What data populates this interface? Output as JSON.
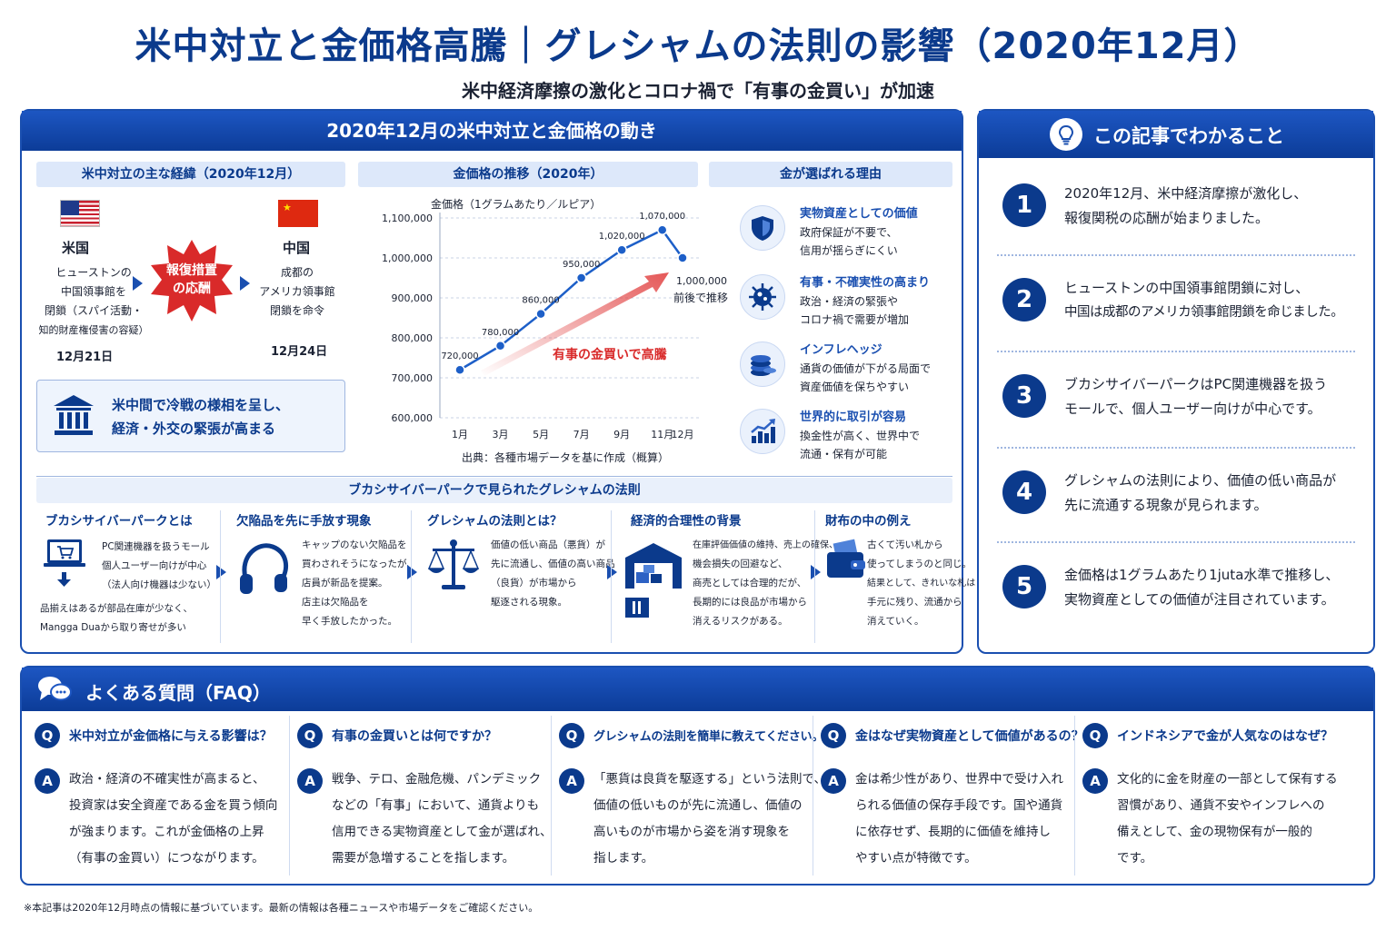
{
  "header": {
    "title": "米中対立と金価格高騰｜グレシャムの法則の影響（2020年12月）",
    "subtitle": "米中経済摩擦の激化とコロナ禍で「有事の金買い」が加速"
  },
  "main_panel": {
    "title": "2020年12月の米中対立と金価格の動き",
    "timeline": {
      "heading": "米中対立の主な経緯（2020年12月）",
      "us": {
        "country": "米国",
        "lines": [
          "ヒューストンの",
          "中国領事館を",
          "閉鎖（スパイ活動・",
          "知的財産権侵害の容疑）"
        ],
        "date": "12月21日"
      },
      "badge": [
        "報復措置",
        "の応酬"
      ],
      "cn": {
        "country": "中国",
        "lines": [
          "成都の",
          "アメリカ領事館",
          "閉鎖を命令"
        ],
        "date": "12月24日"
      },
      "callout": [
        "米中間で冷戦の様相を呈し、",
        "経済・外交の緊張が高まる"
      ]
    },
    "chart_section": {
      "heading": "金価格の推移（2020年）",
      "axis_title": "金価格（1グラムあたり／ルピア）",
      "trend_label": "有事の金買いで高騰",
      "end_note": [
        "1,000,000",
        "前後で推移"
      ],
      "source": "出典：各種市場データを基に作成（概算）"
    },
    "reasons": {
      "heading": "金が選ばれる理由",
      "items": [
        {
          "title": "実物資産としての価値",
          "lines": [
            "政府保証が不要で、",
            "信用が揺らぎにくい"
          ],
          "icon": "shield-icon"
        },
        {
          "title": "有事・不確実性の高まり",
          "lines": [
            "政治・経済の緊張や",
            "コロナ禍で需要が増加"
          ],
          "icon": "virus-icon"
        },
        {
          "title": "インフレヘッジ",
          "lines": [
            "通貨の価値が下がる局面で",
            "資産価値を保ちやすい"
          ],
          "icon": "coins-icon"
        },
        {
          "title": "世界的に取引が容易",
          "lines": [
            "換金性が高く、世界中で",
            "流通・保有が可能"
          ],
          "icon": "growth-chart-icon"
        }
      ]
    },
    "gresham": {
      "heading": "ブカシサイバーパークで見られたグレシャムの法則",
      "steps": [
        {
          "title": "ブカシサイバーパークとは",
          "lines": [
            "PC関連機器を扱うモール",
            "個人ユーザー向けが中心",
            "（法人向け機器は少ない）"
          ],
          "bottom": [
            "品揃えはあるが部品在庫が少なく、",
            "Mangga Duaから取り寄せが多い"
          ],
          "icon": "laptop-cart-icon"
        },
        {
          "title": "欠陥品を先に手放す現象",
          "lines": [
            "キャップのない欠陥品を",
            "買わされそうになったが、",
            "店員が新品を提案。",
            "店主は欠陥品を",
            "早く手放したかった。"
          ],
          "icon": "headphones-icon"
        },
        {
          "title": "グレシャムの法則とは？",
          "lines": [
            "価値の低い商品（悪貨）が",
            "先に流通し、価値の高い商品",
            "（良貨）が市場から",
            "駆逐される現象。"
          ],
          "icon": "scales-icon"
        },
        {
          "title": "経済的合理性の背景",
          "lines": [
            "在庫評価価値の維持、売上の確保、",
            "機会損失の回避など、",
            "商売としては合理的だが、",
            "長期的には良品が市場から",
            "消えるリスクがある。"
          ],
          "icon": "warehouse-icon"
        },
        {
          "title": "財布の中の例え",
          "lines": [
            "古くて汚い札から",
            "使ってしまうのと同じ。",
            "結果として、きれいな札は",
            "手元に残り、流通から",
            "消えていく。"
          ],
          "icon": "wallet-icon"
        }
      ]
    }
  },
  "summary_panel": {
    "title": "この記事でわかること",
    "items": [
      {
        "num": "1",
        "lines": [
          "2020年12月、米中経済摩擦が激化し、",
          "報復関税の応酬が始まりました。"
        ]
      },
      {
        "num": "2",
        "lines": [
          "ヒューストンの中国領事館閉鎖に対し、",
          "中国は成都のアメリカ領事館閉鎖を命じました。"
        ]
      },
      {
        "num": "3",
        "lines": [
          "ブカシサイバーパークはPC関連機器を扱う",
          "モールで、個人ユーザー向けが中心です。"
        ]
      },
      {
        "num": "4",
        "lines": [
          "グレシャムの法則により、価値の低い商品が",
          "先に流通する現象が見られます。"
        ]
      },
      {
        "num": "5",
        "lines": [
          "金価格は1グラムあたり1juta水準で推移し、",
          "実物資産としての価値が注目されています。"
        ]
      }
    ]
  },
  "faq": {
    "title": "よくある質問（FAQ）",
    "q_badge": "Q",
    "a_badge": "A",
    "items": [
      {
        "q": "米中対立が金価格に与える影響は？",
        "a": [
          "政治・経済の不確実性が高まると、",
          "投資家は安全資産である金を買う傾向",
          "が強まります。これが金価格の上昇",
          "（有事の金買い）につながります。"
        ]
      },
      {
        "q": "有事の金買いとは何ですか？",
        "a": [
          "戦争、テロ、金融危機、パンデミック",
          "などの「有事」において、通貨よりも",
          "信用できる実物資産として金が選ばれ、",
          "需要が急増することを指します。"
        ]
      },
      {
        "q": "グレシャムの法則を簡単に教えてください。",
        "a": [
          "「悪貨は良貨を駆逐する」という法則で、",
          "価値の低いものが先に流通し、価値の",
          "高いものが市場から姿を消す現象を",
          "指します。"
        ]
      },
      {
        "q": "金はなぜ実物資産として価値があるの？",
        "a": [
          "金は希少性があり、世界中で受け入れ",
          "られる価値の保存手段です。国や通貨",
          "に依存せず、長期的に価値を維持し",
          "やすい点が特徴です。"
        ]
      },
      {
        "q": "インドネシアで金が人気なのはなぜ？",
        "a": [
          "文化的に金を財産の一部として保有する",
          "習慣があり、通貨不安やインフレへの",
          "備えとして、金の現物保有が一般的",
          "です。"
        ]
      }
    ]
  },
  "footnote": "※本記事は2020年12月時点の情報に基づいています。最新の情報は各種ニュースや市場データをご確認ください。",
  "colors": {
    "primary": "#0b3a8c",
    "accent": "#1a4fb0",
    "line": "#1d5fc8",
    "trend_red": "#e03a3a",
    "band_light": "#dde8fa"
  },
  "chart_data": {
    "type": "line",
    "title": "",
    "ylabel": "金価格（1グラムあたり／ルピア）",
    "categories": [
      "1月",
      "3月",
      "5月",
      "7月",
      "9月",
      "11月",
      "12月"
    ],
    "values": [
      720000,
      780000,
      860000,
      950000,
      1020000,
      1070000,
      1000000
    ],
    "data_labels": [
      "720,000",
      "780,000",
      "860,000",
      "950,000",
      "1,020,000",
      "1,070,000",
      ""
    ],
    "yticks": [
      "1,100,000",
      "1,000,000",
      "900,000",
      "800,000",
      "700,000",
      "600,000"
    ],
    "ytick_values": [
      1100000,
      1000000,
      900000,
      800000,
      700000,
      600000
    ],
    "ylim": [
      600000,
      1100000
    ],
    "grid": "horizontal-dashed"
  }
}
